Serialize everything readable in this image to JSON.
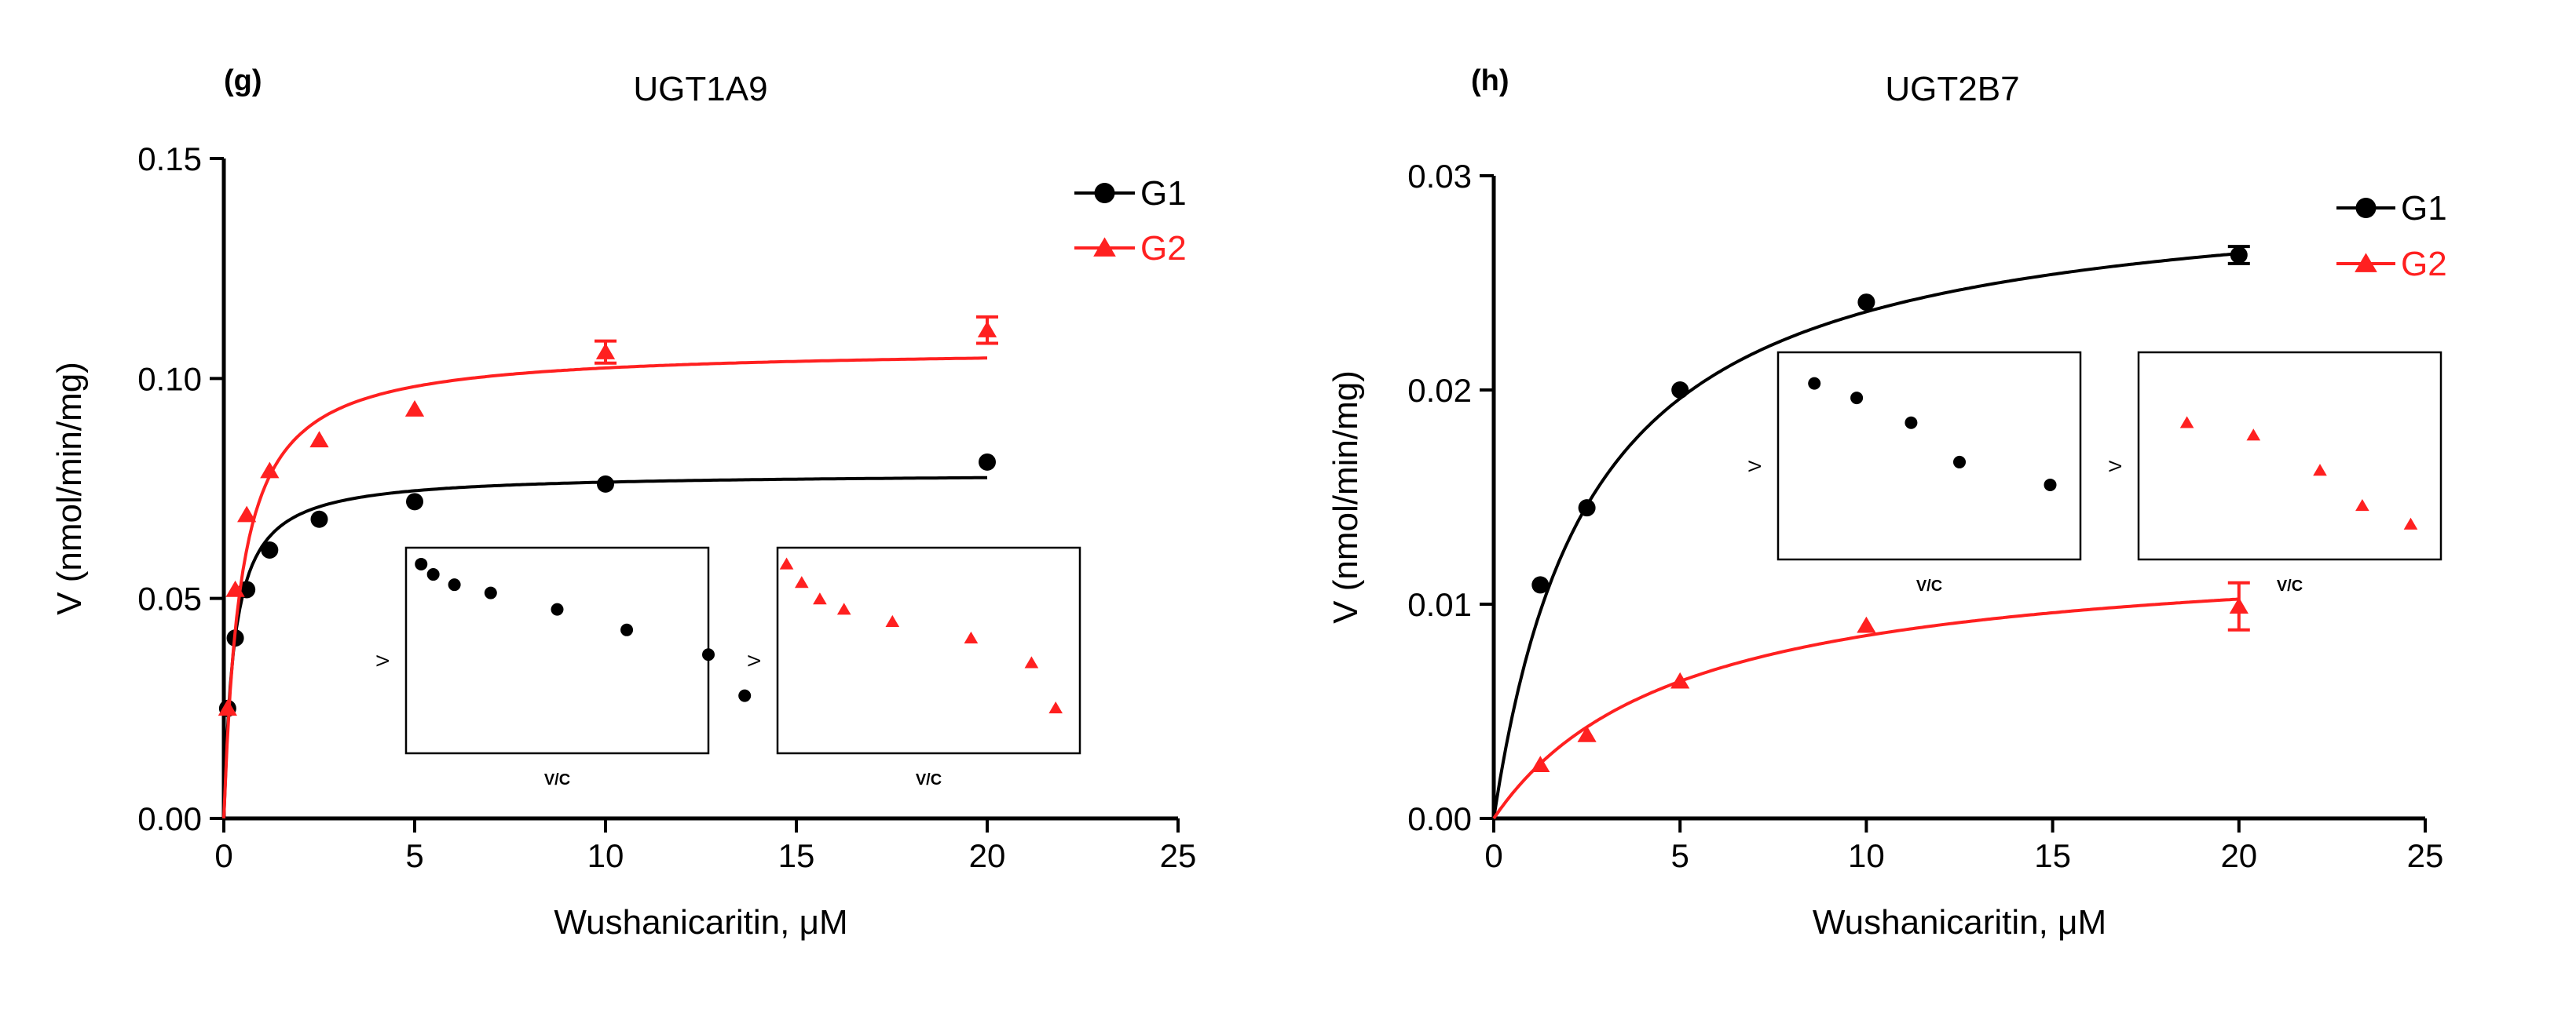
{
  "colors": {
    "g1": "#000000",
    "g2": "#ff2020",
    "axis": "#000000"
  },
  "chart_data": [
    {
      "type": "scatter",
      "panel_label": "(g)",
      "title": "UGT1A9",
      "xlabel": "Wushanicaritin, μM",
      "ylabel": "V (nmol/min/mg)",
      "xlim": [
        0,
        25
      ],
      "ylim": [
        0,
        0.15
      ],
      "xticks": [
        0,
        5,
        10,
        15,
        20,
        25
      ],
      "xtick_labels": [
        "0",
        "5",
        "10",
        "15",
        "20",
        "25"
      ],
      "yticks": [
        0,
        0.05,
        0.1,
        0.15
      ],
      "ytick_labels": [
        "0.00",
        "0.05",
        "0.10",
        "0.15"
      ],
      "legend": {
        "position": "top-right",
        "entries": [
          "G1",
          "G2"
        ]
      },
      "series": [
        {
          "name": "G1",
          "marker": "circle",
          "color": "#000000",
          "x": [
            0.1,
            0.3,
            0.6,
            1.2,
            2.5,
            5,
            10,
            20
          ],
          "y": [
            0.025,
            0.041,
            0.052,
            0.061,
            0.068,
            0.072,
            0.076,
            0.081
          ],
          "fit": {
            "model": "michaelis-menten",
            "vmax": 0.0785,
            "km": 0.27
          }
        },
        {
          "name": "G2",
          "marker": "triangle",
          "color": "#ff2020",
          "x": [
            0.1,
            0.3,
            0.6,
            1.2,
            2.5,
            5,
            10,
            20
          ],
          "y": [
            0.025,
            0.052,
            0.069,
            0.079,
            0.086,
            0.093,
            0.106,
            0.111
          ],
          "err": [
            0,
            0,
            0,
            0,
            0,
            0,
            0.0025,
            0.003
          ],
          "fit": {
            "model": "michaelis-menten",
            "vmax": 0.107,
            "km": 0.45
          }
        }
      ],
      "insets": [
        {
          "name": "eadie-hofstee-g1",
          "xlabel": "V/C",
          "ylabel": "V",
          "marker": "circle",
          "color": "#000000",
          "x": [
            0.05,
            0.09,
            0.16,
            0.28,
            0.5,
            0.73,
            1.0,
            1.12
          ],
          "y": [
            0.92,
            0.87,
            0.82,
            0.78,
            0.7,
            0.6,
            0.48,
            0.28
          ]
        },
        {
          "name": "eadie-hofstee-g2",
          "xlabel": "V/C",
          "ylabel": "V",
          "marker": "triangle",
          "color": "#ff2020",
          "x": [
            0.03,
            0.08,
            0.14,
            0.22,
            0.38,
            0.64,
            0.84,
            0.92
          ],
          "y": [
            0.92,
            0.83,
            0.75,
            0.7,
            0.64,
            0.56,
            0.44,
            0.22
          ]
        }
      ]
    },
    {
      "type": "scatter",
      "panel_label": "(h)",
      "title": "UGT2B7",
      "xlabel": "Wushanicaritin, μM",
      "ylabel": "V (nmol/min/mg)",
      "xlim": [
        0,
        25
      ],
      "ylim": [
        0,
        0.03
      ],
      "xticks": [
        0,
        5,
        10,
        15,
        20,
        25
      ],
      "xtick_labels": [
        "0",
        "5",
        "10",
        "15",
        "20",
        "25"
      ],
      "yticks": [
        0,
        0.01,
        0.02,
        0.03
      ],
      "ytick_labels": [
        "0.00",
        "0.01",
        "0.02",
        "0.03"
      ],
      "legend": {
        "position": "top-right",
        "entries": [
          "G1",
          "G2"
        ]
      },
      "series": [
        {
          "name": "G1",
          "marker": "circle",
          "color": "#000000",
          "x": [
            1.25,
            2.5,
            5,
            10,
            20
          ],
          "y": [
            0.0109,
            0.0145,
            0.02,
            0.0241,
            0.0263
          ],
          "err": [
            0,
            0,
            0,
            0,
            0.0004
          ],
          "fit": {
            "model": "michaelis-menten",
            "vmax": 0.0298,
            "km": 2.6
          }
        },
        {
          "name": "G2",
          "marker": "triangle",
          "color": "#ff2020",
          "x": [
            1.25,
            2.5,
            5,
            10,
            20
          ],
          "y": [
            0.0025,
            0.0039,
            0.0064,
            0.009,
            0.0099
          ],
          "err": [
            0,
            0,
            0,
            0,
            0.0011
          ],
          "fit": {
            "model": "michaelis-menten",
            "vmax": 0.0128,
            "km": 5.0
          }
        }
      ],
      "insets": [
        {
          "name": "eadie-hofstee-g1",
          "xlabel": "V/C",
          "ylabel": "V",
          "marker": "circle",
          "color": "#000000",
          "x": [
            0.12,
            0.26,
            0.44,
            0.6,
            0.9
          ],
          "y": [
            0.85,
            0.78,
            0.66,
            0.47,
            0.36
          ]
        },
        {
          "name": "eadie-hofstee-g2",
          "xlabel": "V/C",
          "ylabel": "V",
          "marker": "triangle",
          "color": "#ff2020",
          "x": [
            0.16,
            0.38,
            0.6,
            0.74,
            0.9
          ],
          "y": [
            0.66,
            0.6,
            0.43,
            0.26,
            0.17
          ]
        }
      ]
    }
  ]
}
